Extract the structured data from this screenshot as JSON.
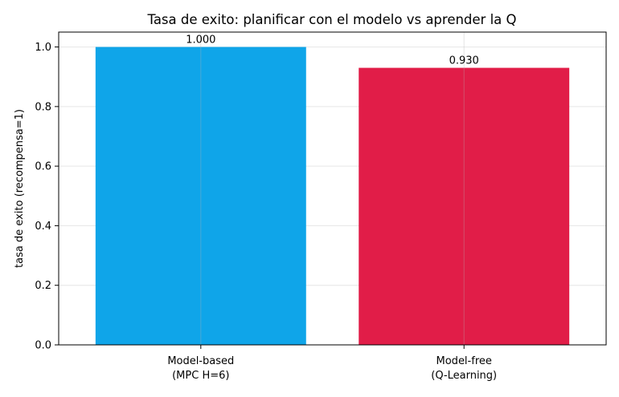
{
  "chart_data": {
    "type": "bar",
    "title": "Tasa de exito: planificar con el modelo vs aprender la Q",
    "xlabel": "",
    "ylabel": "tasa de exito (recompensa=1)",
    "categories": [
      [
        "Model-based",
        "(MPC H=6)"
      ],
      [
        "Model-free",
        "(Q-Learning)"
      ]
    ],
    "values": [
      1.0,
      0.93
    ],
    "value_labels": [
      "1.000",
      "0.930"
    ],
    "colors": [
      "#0fa5e9",
      "#e11d48"
    ],
    "ylim": [
      0,
      1.05
    ],
    "yticks": [
      0.0,
      0.2,
      0.4,
      0.6,
      0.8,
      1.0
    ],
    "ytick_labels": [
      "0.0",
      "0.2",
      "0.4",
      "0.6",
      "0.8",
      "1.0"
    ],
    "grid": true
  }
}
